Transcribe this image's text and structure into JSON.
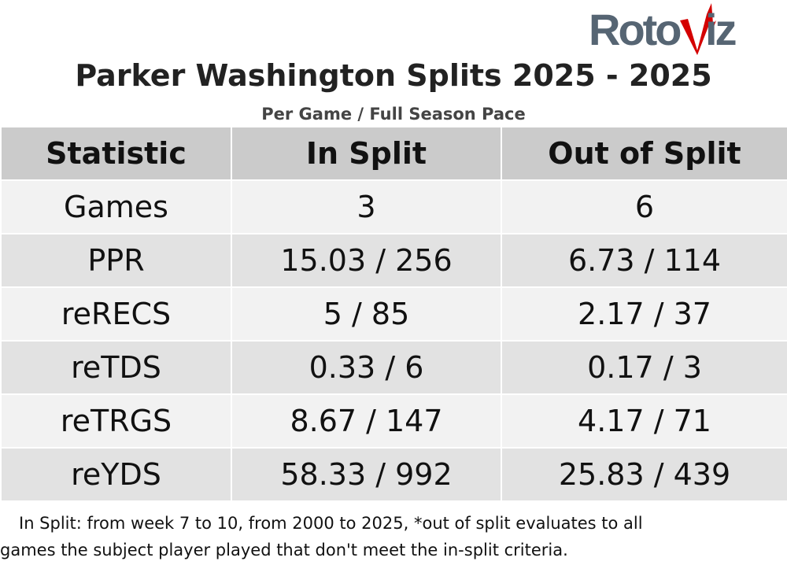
{
  "logo": {
    "text": "RotoViz",
    "left": "Roto",
    "right": "iz",
    "colors": {
      "gray": "#566573",
      "red": "#d40000"
    }
  },
  "title": "Parker Washington Splits 2025 - 2025",
  "subtitle": "Per Game / Full Season Pace",
  "chart_data": {
    "type": "table",
    "columns": [
      "Statistic",
      "In Split",
      "Out of Split"
    ],
    "rows": [
      [
        "Games",
        "3",
        "6"
      ],
      [
        "PPR",
        "15.03 / 256",
        "6.73 / 114"
      ],
      [
        "reRECS",
        "5 / 85",
        "2.17 / 37"
      ],
      [
        "reTDS",
        "0.33 / 6",
        "0.17 / 3"
      ],
      [
        "reTRGS",
        "8.67 / 147",
        "4.17 / 71"
      ],
      [
        "reYDS",
        "58.33 / 992",
        "25.83 / 439"
      ]
    ]
  },
  "footnote": {
    "line1": "In Split: from week 7 to 10, from 2000 to 2025,  *out of split evaluates to all",
    "line2": "games the subject player played that don't meet the in-split criteria."
  }
}
